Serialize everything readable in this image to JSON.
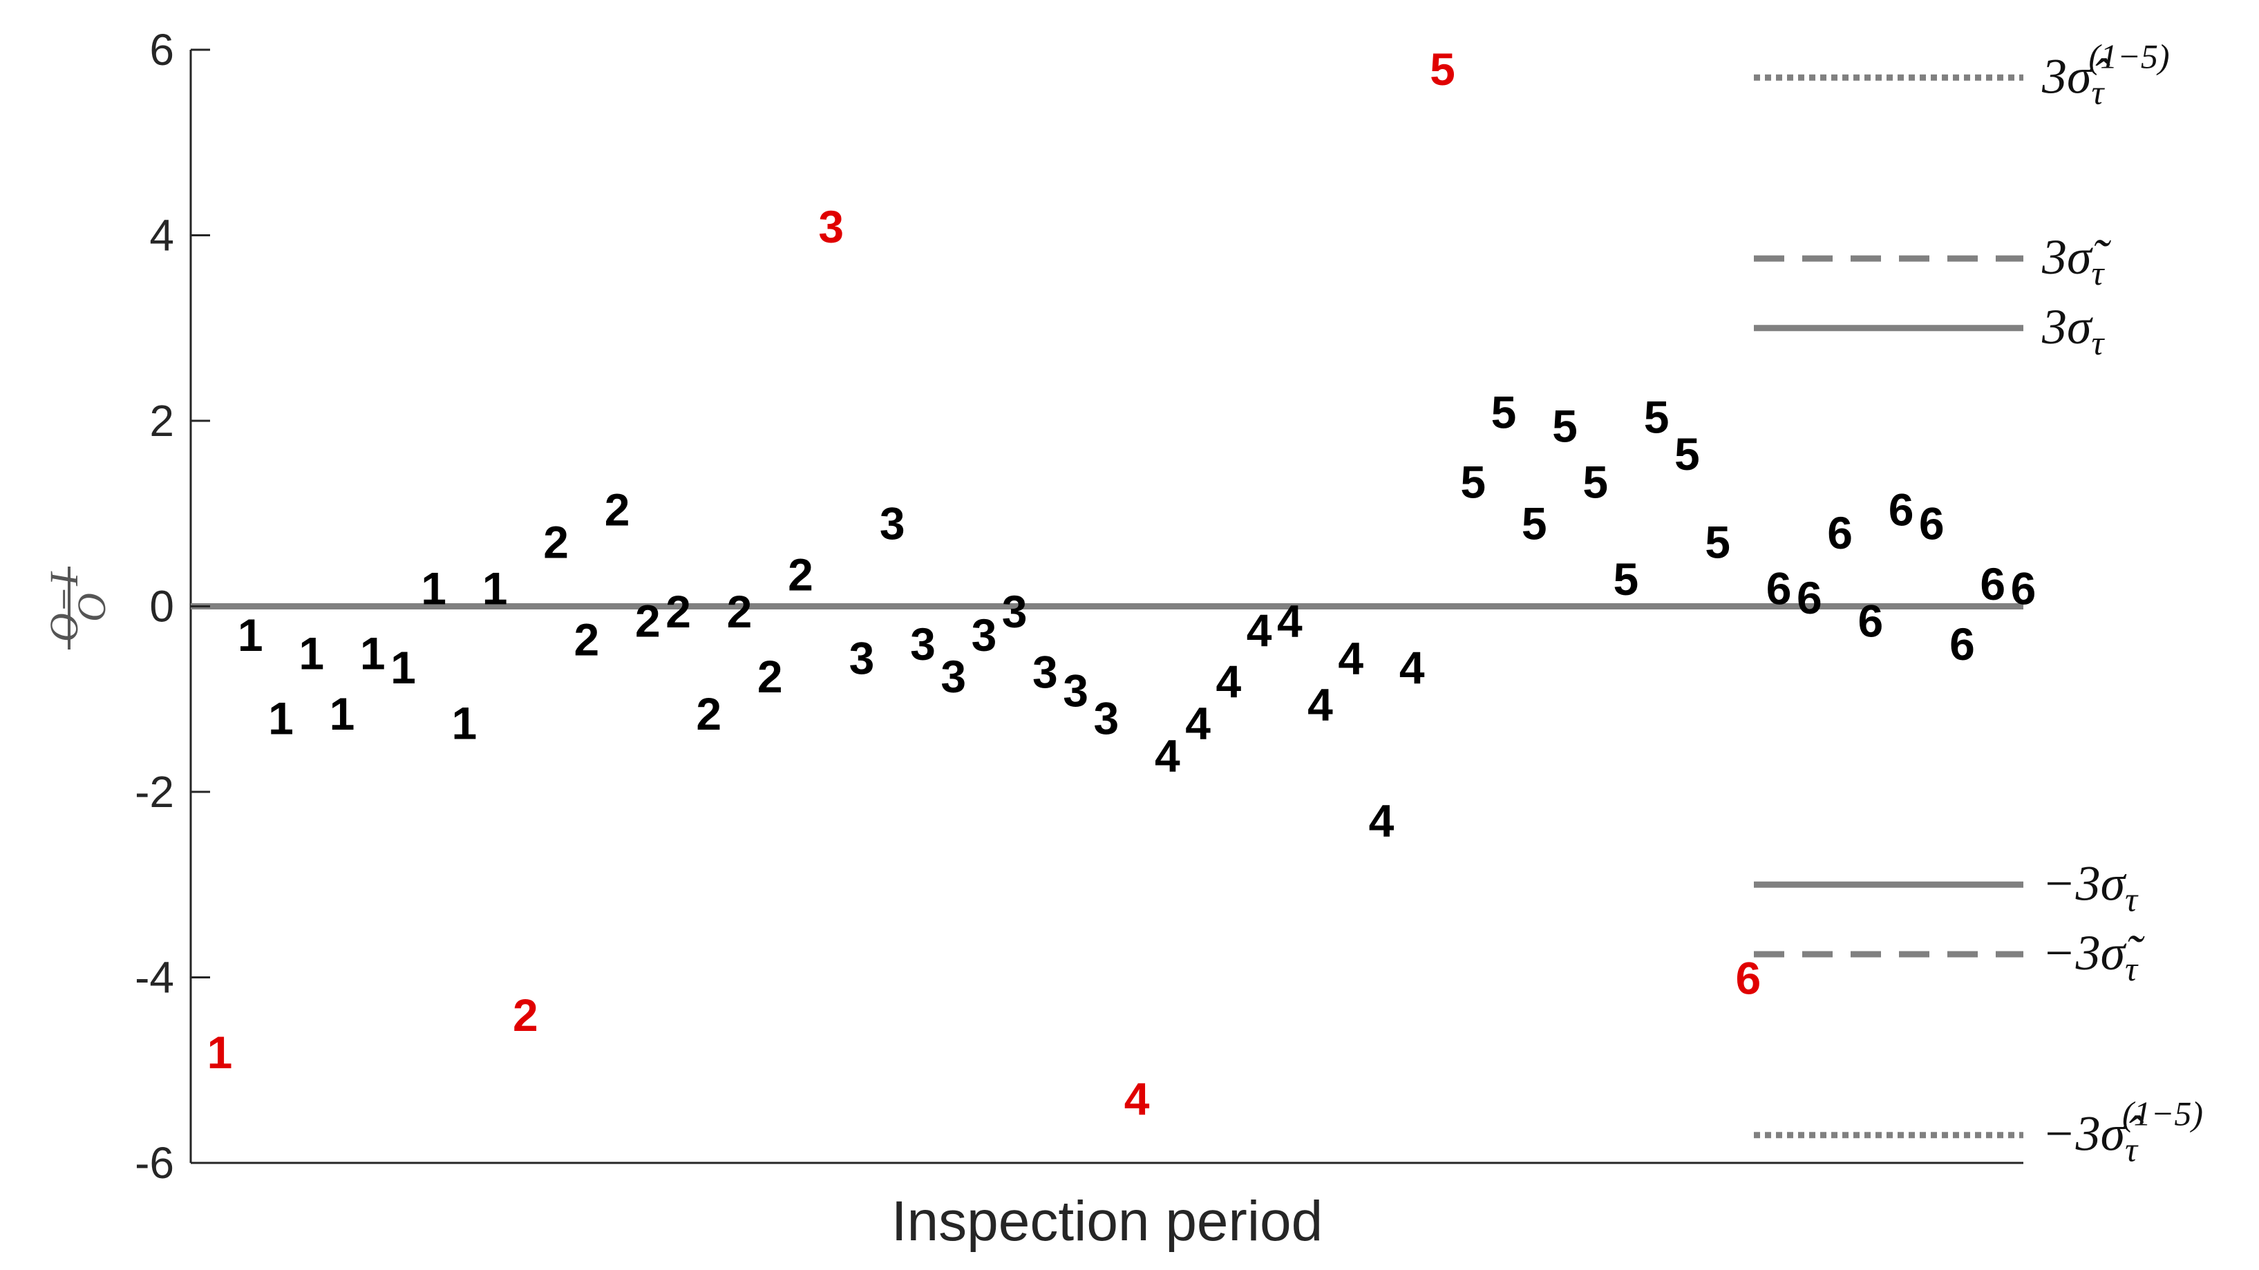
{
  "chart_data": {
    "type": "scatter",
    "xlabel": "Inspection period",
    "ylabel_numerator": "O−I",
    "ylabel_denominator": "O",
    "ylim": [
      -6,
      6
    ],
    "yticks": [
      6,
      4,
      2,
      0,
      -2,
      -4,
      -6
    ],
    "ytick_labels": [
      "6",
      "4",
      "2",
      "0",
      "-2",
      "-4",
      "-6"
    ],
    "xlim": [
      0,
      60
    ],
    "grid": false,
    "marker_colors": {
      "normal": "#000000",
      "outlier": "#e00000",
      "reference": "#808080"
    },
    "zero_line": 0,
    "points": [
      {
        "x": 1,
        "y": -4.8,
        "label": "1",
        "outlier": true
      },
      {
        "x": 2,
        "y": -0.3,
        "label": "1",
        "outlier": false
      },
      {
        "x": 3,
        "y": -1.2,
        "label": "1",
        "outlier": false
      },
      {
        "x": 4,
        "y": -0.5,
        "label": "1",
        "outlier": false
      },
      {
        "x": 5,
        "y": -1.15,
        "label": "1",
        "outlier": false
      },
      {
        "x": 6,
        "y": -0.5,
        "label": "1",
        "outlier": false
      },
      {
        "x": 7,
        "y": -0.65,
        "label": "1",
        "outlier": false
      },
      {
        "x": 8,
        "y": 0.2,
        "label": "1",
        "outlier": false
      },
      {
        "x": 9,
        "y": -1.25,
        "label": "1",
        "outlier": false
      },
      {
        "x": 10,
        "y": 0.2,
        "label": "1",
        "outlier": false
      },
      {
        "x": 11,
        "y": -4.4,
        "label": "2",
        "outlier": true
      },
      {
        "x": 12,
        "y": 0.7,
        "label": "2",
        "outlier": false
      },
      {
        "x": 13,
        "y": -0.35,
        "label": "2",
        "outlier": false
      },
      {
        "x": 14,
        "y": 1.05,
        "label": "2",
        "outlier": false
      },
      {
        "x": 15,
        "y": -0.15,
        "label": "2",
        "outlier": false
      },
      {
        "x": 16,
        "y": -0.05,
        "label": "2",
        "outlier": false
      },
      {
        "x": 17,
        "y": -1.15,
        "label": "2",
        "outlier": false
      },
      {
        "x": 18,
        "y": -0.05,
        "label": "2",
        "outlier": false
      },
      {
        "x": 19,
        "y": -0.75,
        "label": "2",
        "outlier": false
      },
      {
        "x": 20,
        "y": 0.35,
        "label": "2",
        "outlier": false
      },
      {
        "x": 21,
        "y": 4.1,
        "label": "3",
        "outlier": true
      },
      {
        "x": 22,
        "y": -0.55,
        "label": "3",
        "outlier": false
      },
      {
        "x": 23,
        "y": 0.9,
        "label": "3",
        "outlier": false
      },
      {
        "x": 24,
        "y": -0.4,
        "label": "3",
        "outlier": false
      },
      {
        "x": 25,
        "y": -0.75,
        "label": "3",
        "outlier": false
      },
      {
        "x": 26,
        "y": -0.3,
        "label": "3",
        "outlier": false
      },
      {
        "x": 27,
        "y": -0.05,
        "label": "3",
        "outlier": false
      },
      {
        "x": 28,
        "y": -0.7,
        "label": "3",
        "outlier": false
      },
      {
        "x": 29,
        "y": -0.9,
        "label": "3",
        "outlier": false
      },
      {
        "x": 30,
        "y": -1.2,
        "label": "3",
        "outlier": false
      },
      {
        "x": 31,
        "y": -5.3,
        "label": "4",
        "outlier": true
      },
      {
        "x": 32,
        "y": -1.6,
        "label": "4",
        "outlier": false
      },
      {
        "x": 33,
        "y": -1.25,
        "label": "4",
        "outlier": false
      },
      {
        "x": 34,
        "y": -0.8,
        "label": "4",
        "outlier": false
      },
      {
        "x": 35,
        "y": -0.25,
        "label": "4",
        "outlier": false
      },
      {
        "x": 36,
        "y": -0.15,
        "label": "4",
        "outlier": false
      },
      {
        "x": 37,
        "y": -1.05,
        "label": "4",
        "outlier": false
      },
      {
        "x": 38,
        "y": -0.55,
        "label": "4",
        "outlier": false
      },
      {
        "x": 39,
        "y": -2.3,
        "label": "4",
        "outlier": false
      },
      {
        "x": 40,
        "y": -0.65,
        "label": "4",
        "outlier": false
      },
      {
        "x": 41,
        "y": 5.8,
        "label": "5",
        "outlier": true
      },
      {
        "x": 42,
        "y": 1.35,
        "label": "5",
        "outlier": false
      },
      {
        "x": 43,
        "y": 2.1,
        "label": "5",
        "outlier": false
      },
      {
        "x": 44,
        "y": 0.9,
        "label": "5",
        "outlier": false
      },
      {
        "x": 45,
        "y": 1.95,
        "label": "5",
        "outlier": false
      },
      {
        "x": 46,
        "y": 1.35,
        "label": "5",
        "outlier": false
      },
      {
        "x": 47,
        "y": 0.3,
        "label": "5",
        "outlier": false
      },
      {
        "x": 48,
        "y": 2.05,
        "label": "5",
        "outlier": false
      },
      {
        "x": 49,
        "y": 1.65,
        "label": "5",
        "outlier": false
      },
      {
        "x": 50,
        "y": 0.7,
        "label": "5",
        "outlier": false
      },
      {
        "x": 51,
        "y": -4.0,
        "label": "6",
        "outlier": true
      },
      {
        "x": 52,
        "y": 0.2,
        "label": "6",
        "outlier": false
      },
      {
        "x": 53,
        "y": 0.1,
        "label": "6",
        "outlier": false
      },
      {
        "x": 54,
        "y": 0.8,
        "label": "6",
        "outlier": false
      },
      {
        "x": 55,
        "y": -0.15,
        "label": "6",
        "outlier": false
      },
      {
        "x": 56,
        "y": 1.05,
        "label": "6",
        "outlier": false
      },
      {
        "x": 57,
        "y": 0.9,
        "label": "6",
        "outlier": false
      },
      {
        "x": 58,
        "y": -0.4,
        "label": "6",
        "outlier": false
      },
      {
        "x": 59,
        "y": 0.25,
        "label": "6",
        "outlier": false
      },
      {
        "x": 60,
        "y": 0.2,
        "label": "6",
        "outlier": false
      }
    ],
    "reference_lines": [
      {
        "y": 5.7,
        "style": "dotted",
        "label": "3σ̂τ(1−5)",
        "base": "3σ̂",
        "sub": "τ",
        "sup": "(1−5)"
      },
      {
        "y": 3.75,
        "style": "dashed",
        "label": "3σ̃τ",
        "base": "3σ̃",
        "sub": "τ",
        "sup": ""
      },
      {
        "y": 3.0,
        "style": "solid",
        "label": "3στ",
        "base": "3σ",
        "sub": "τ",
        "sup": ""
      },
      {
        "y": -3.0,
        "style": "solid",
        "label": "−3στ",
        "base": "−3σ",
        "sub": "τ",
        "sup": ""
      },
      {
        "y": -3.75,
        "style": "dashed",
        "label": "−3σ̃τ",
        "base": "−3σ̃",
        "sub": "τ",
        "sup": ""
      },
      {
        "y": -5.7,
        "style": "dotted",
        "label": "−3σ̂τ(1−5)",
        "base": "−3σ̂",
        "sub": "τ",
        "sup": "(1−5)"
      }
    ]
  }
}
